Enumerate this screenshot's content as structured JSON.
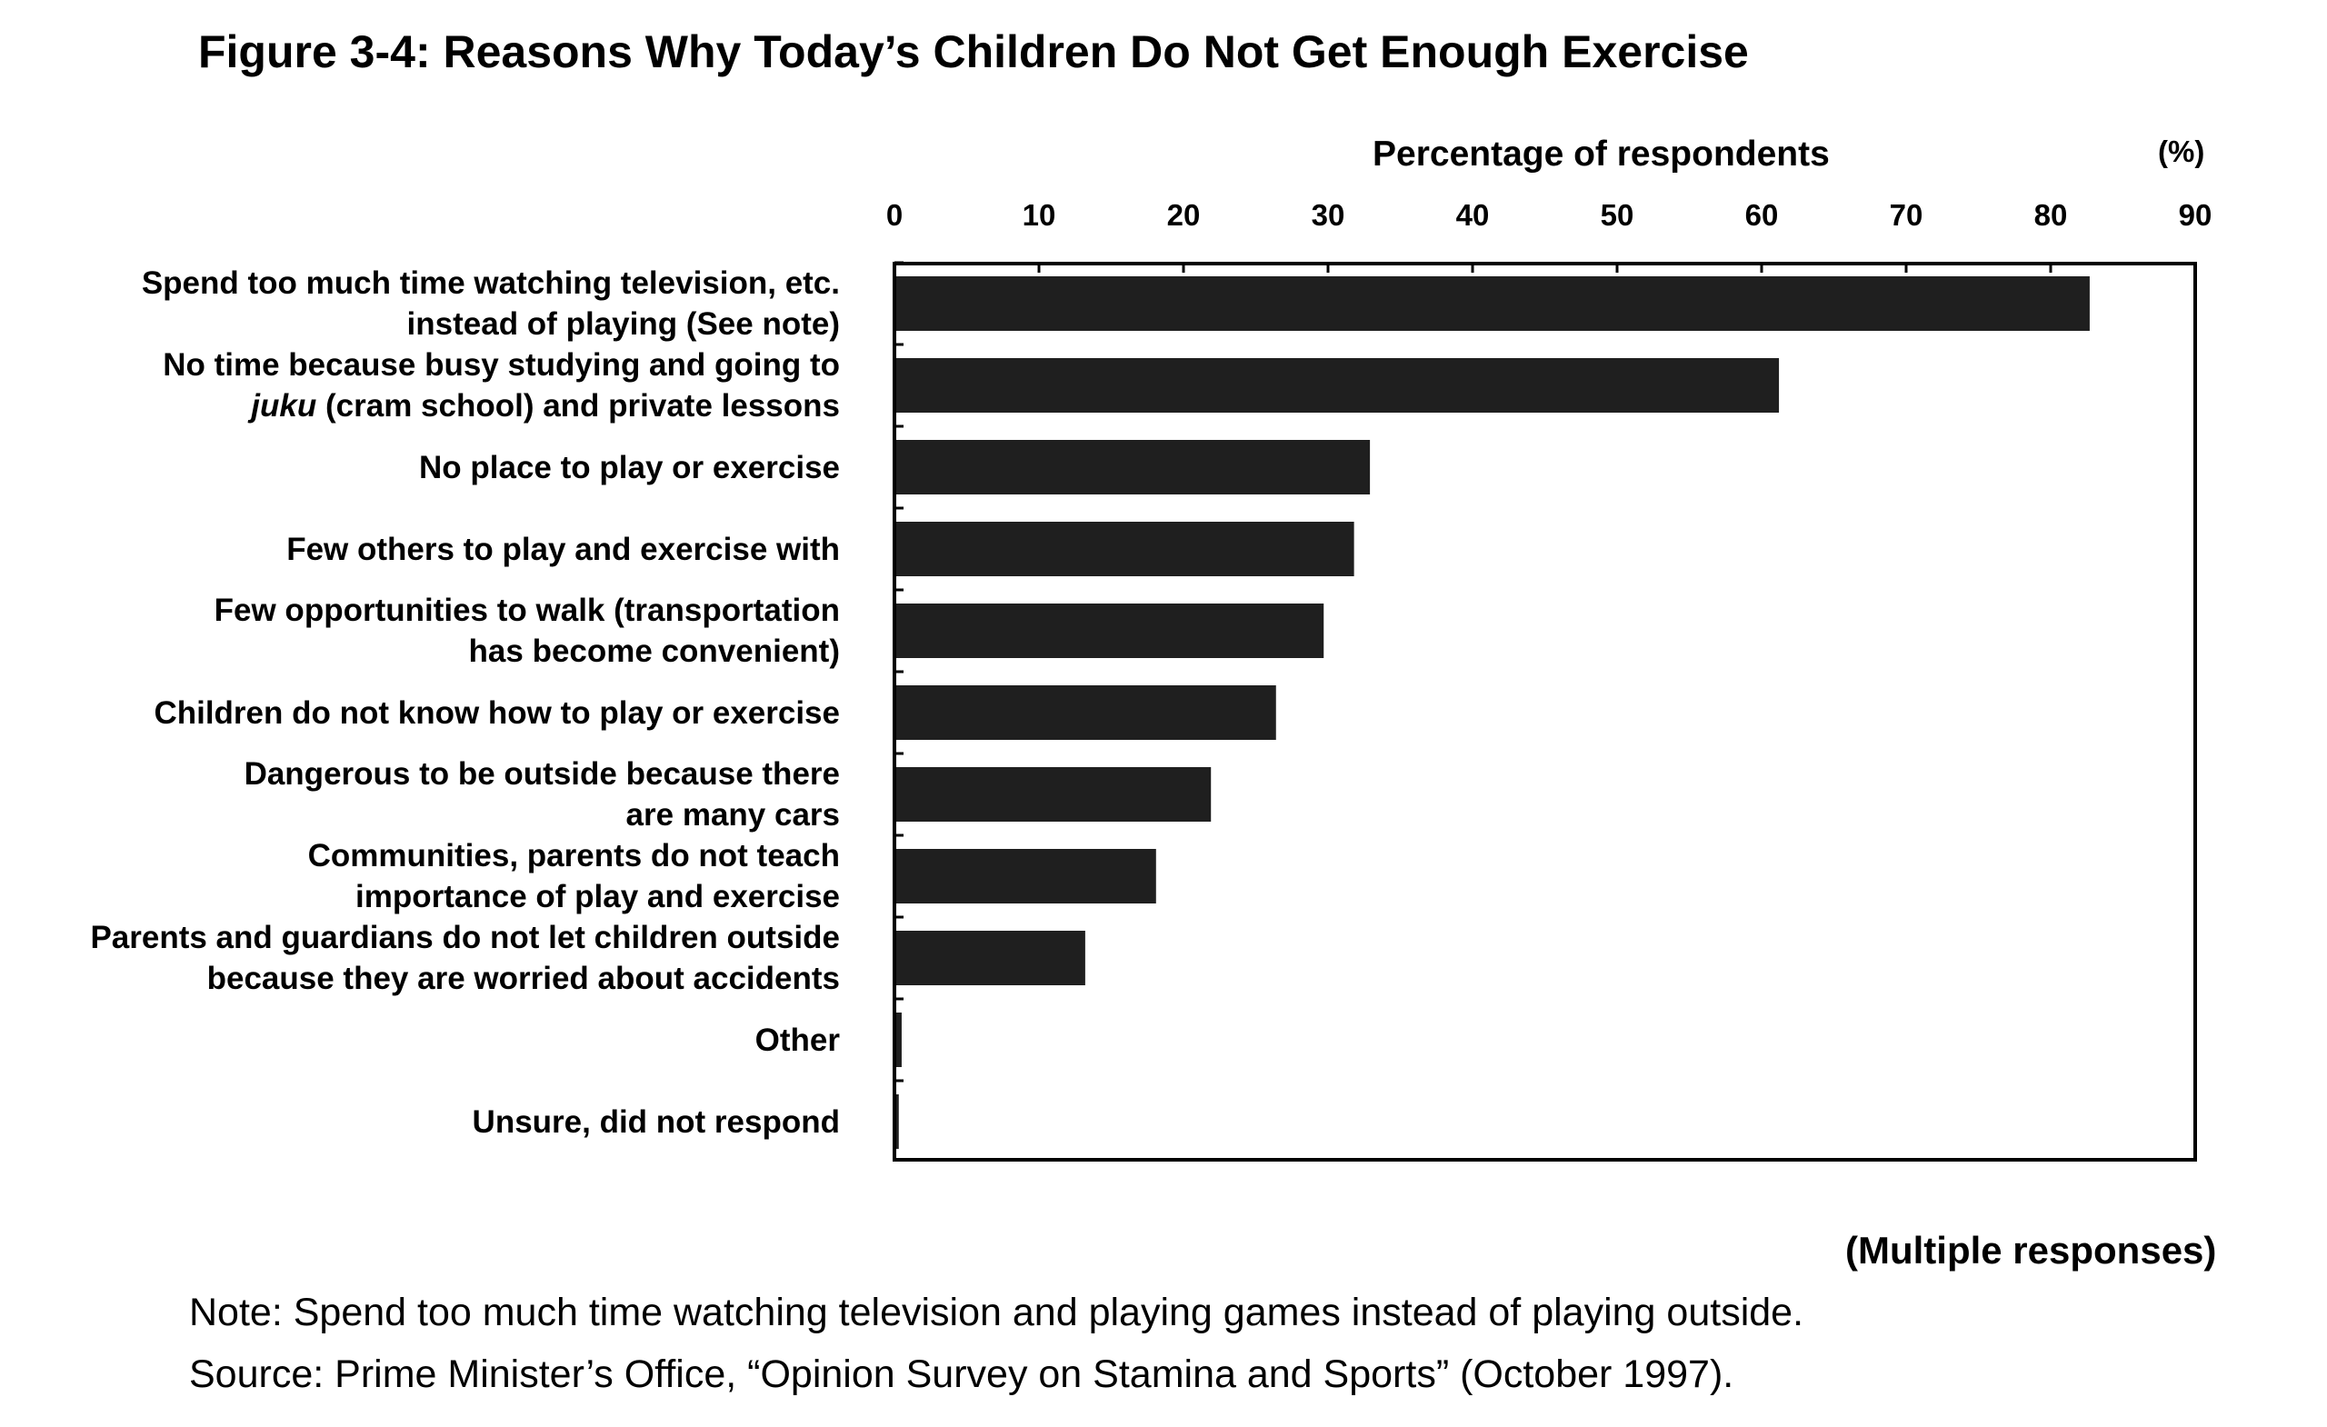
{
  "title": "Figure 3-4: Reasons Why Today’s Children Do Not Get Enough Exercise",
  "chart_data": {
    "type": "bar",
    "orientation": "horizontal",
    "title": "Figure 3-4: Reasons Why Today’s Children Do Not Get Enough Exercise",
    "xlabel": "Percentage of respondents",
    "x_unit": "(%)",
    "xlim": [
      0,
      90
    ],
    "xticks": [
      "0",
      "10",
      "20",
      "30",
      "40",
      "50",
      "60",
      "70",
      "80",
      "90"
    ],
    "x_axis_position": "top",
    "grid": false,
    "categories": [
      {
        "line1": "Spend too much time watching television, etc.",
        "line2": "instead of playing (See note)"
      },
      {
        "line1": "No time because busy studying and going to",
        "line2": "(cram school) and private lessons",
        "line2_italic_prefix": "juku"
      },
      {
        "line1": "No place to play or exercise",
        "line2": ""
      },
      {
        "line1": "Few others to play and exercise with",
        "line2": ""
      },
      {
        "line1": "Few opportunities to walk (transportation",
        "line2": "has become convenient)"
      },
      {
        "line1": "Children do not know how to play or exercise",
        "line2": ""
      },
      {
        "line1": "Dangerous to be outside because there",
        "line2": "are many cars"
      },
      {
        "line1": "Communities, parents do not teach",
        "line2": "importance of play and exercise"
      },
      {
        "line1": "Parents and guardians do not let children outside",
        "line2": "because they are worried about accidents"
      },
      {
        "line1": "Other",
        "line2": ""
      },
      {
        "line1": "Unsure, did not respond",
        "line2": ""
      }
    ],
    "values": [
      82.7,
      61.2,
      32.9,
      31.8,
      29.7,
      26.4,
      21.9,
      18.1,
      13.2,
      0.5,
      0.3
    ],
    "bar_color": "#1f1f1f"
  },
  "footer": {
    "multiple_responses": "(Multiple responses)",
    "note": "Note: Spend too much time watching television and playing games instead of playing outside.",
    "source": "Source: Prime Minister’s Office, “Opinion Survey on Stamina and Sports” (October 1997)."
  }
}
